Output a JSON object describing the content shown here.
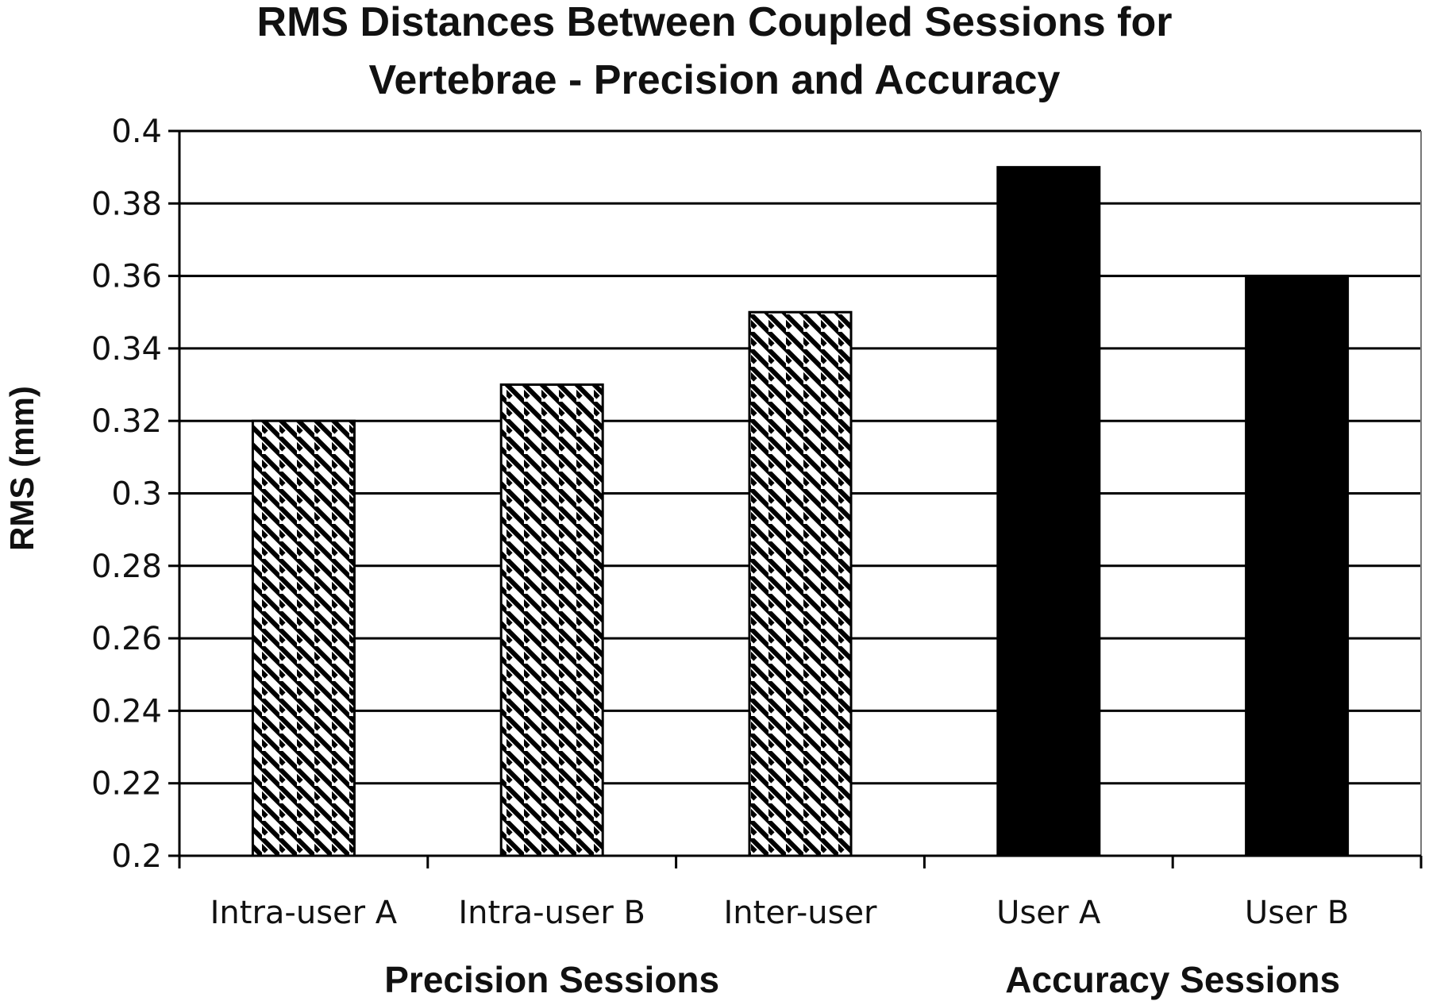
{
  "chart_data": {
    "type": "bar",
    "title_lines": [
      "RMS Distances Between Coupled Sessions for",
      "Vertebrae - Precision and Accuracy"
    ],
    "xlabel": "",
    "ylabel": "RMS (mm)",
    "ylim": [
      0.2,
      0.4
    ],
    "yticks": [
      0.2,
      0.22,
      0.24,
      0.26,
      0.28,
      0.3,
      0.32,
      0.34,
      0.36,
      0.38,
      0.4
    ],
    "ytick_labels": [
      "0.2",
      "0.22",
      "0.24",
      "0.26",
      "0.28",
      "0.3",
      "0.32",
      "0.34",
      "0.36",
      "0.38",
      "0.4"
    ],
    "categories": [
      "Intra-user A",
      "Intra-user B",
      "Inter-user",
      "User A",
      "User B"
    ],
    "values": [
      0.32,
      0.33,
      0.35,
      0.39,
      0.36
    ],
    "fills": [
      "hatched",
      "hatched",
      "hatched",
      "solid",
      "solid"
    ],
    "groups": [
      {
        "label": "Precision Sessions",
        "categories": [
          "Intra-user A",
          "Intra-user B",
          "Inter-user"
        ]
      },
      {
        "label": "Accuracy Sessions",
        "categories": [
          "User A",
          "User B"
        ]
      }
    ],
    "grid": true,
    "legend": "none",
    "colors": {
      "bar_solid": "#000000",
      "hatch": "#000000",
      "grid": "#000000"
    }
  }
}
